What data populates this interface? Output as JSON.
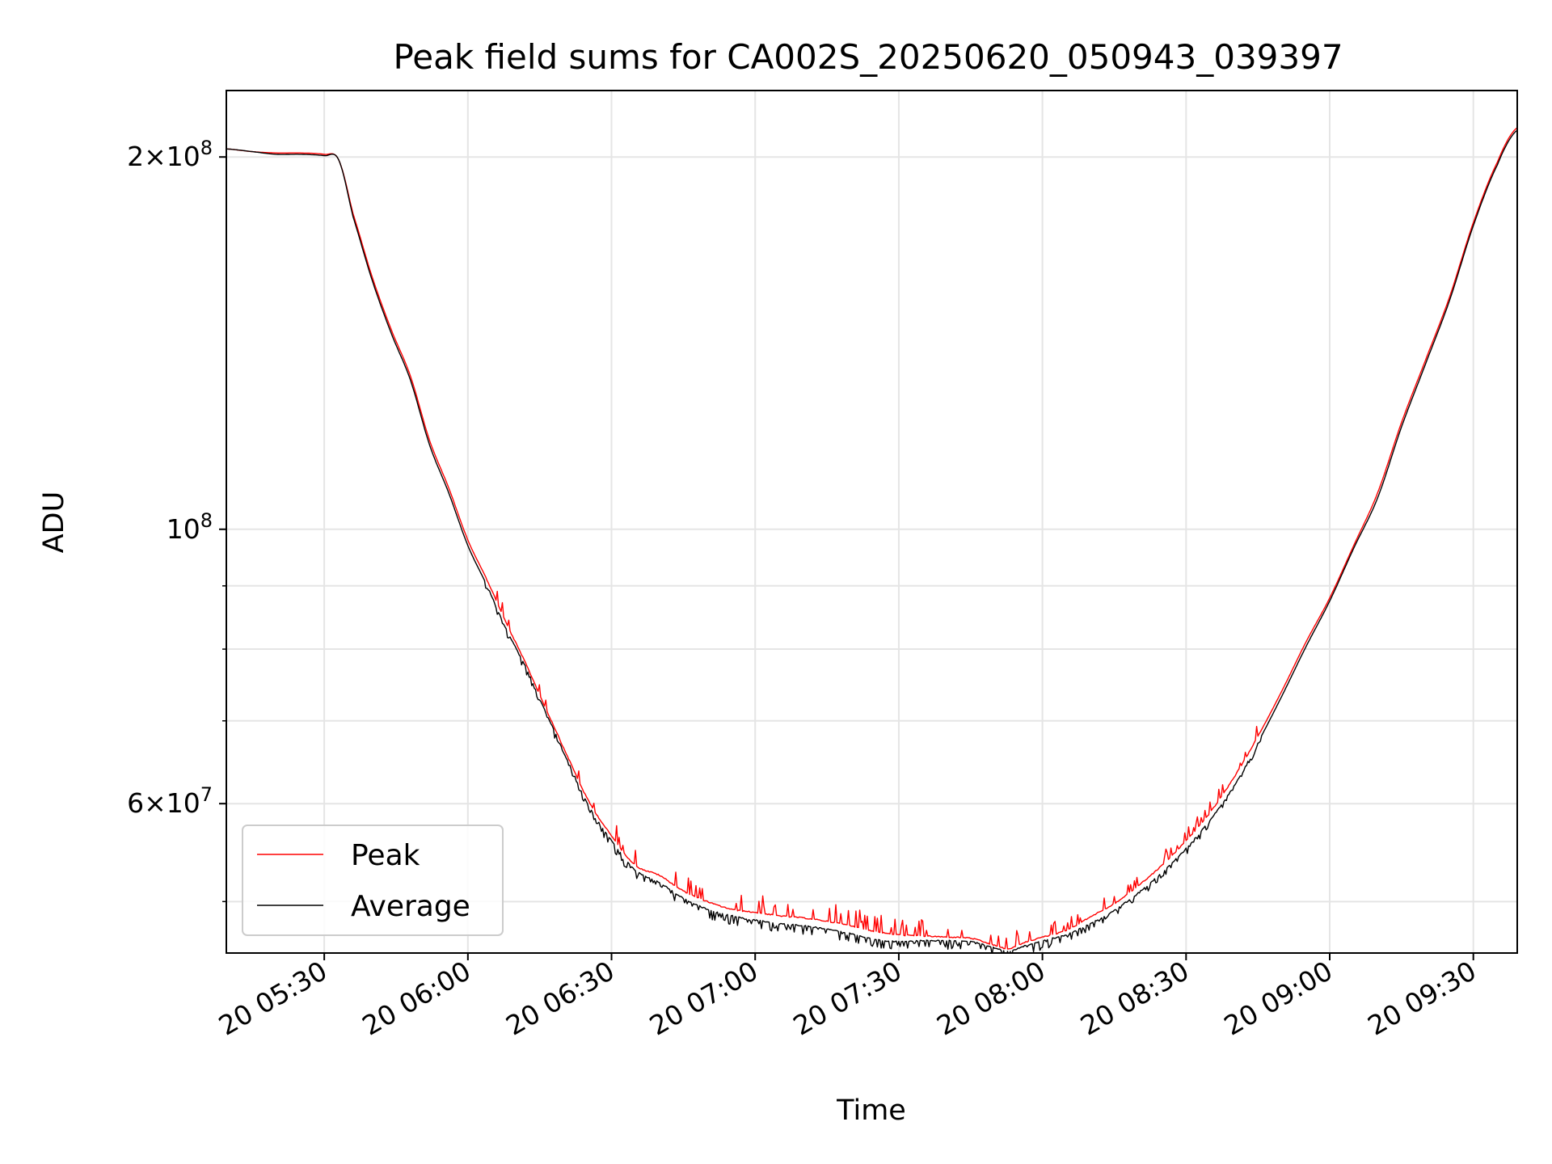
{
  "chart_data": {
    "type": "line",
    "title": "Peak field sums for CA002S_20250620_050943_039397",
    "xlabel": "Time",
    "ylabel": "ADU",
    "x_axis_kind": "datetime",
    "xlim": [
      "2025-06-20T05:09:43",
      "2025-06-20T09:39:00"
    ],
    "yscale": "log",
    "ylim": [
      45500000,
      226000000
    ],
    "grid": true,
    "legend_position": "lower-left",
    "x_tick_labels": [
      {
        "at": "2025-06-20T05:30:00",
        "label": "20 05:30"
      },
      {
        "at": "2025-06-20T06:00:00",
        "label": "20 06:00"
      },
      {
        "at": "2025-06-20T06:30:00",
        "label": "20 06:30"
      },
      {
        "at": "2025-06-20T07:00:00",
        "label": "20 07:00"
      },
      {
        "at": "2025-06-20T07:30:00",
        "label": "20 07:30"
      },
      {
        "at": "2025-06-20T08:00:00",
        "label": "20 08:00"
      },
      {
        "at": "2025-06-20T08:30:00",
        "label": "20 08:30"
      },
      {
        "at": "2025-06-20T09:00:00",
        "label": "20 09:00"
      },
      {
        "at": "2025-06-20T09:30:00",
        "label": "20 09:30"
      }
    ],
    "y_major_ticks": [
      {
        "value": 200000000,
        "mantissa": "2",
        "base": "10",
        "exp": "8"
      },
      {
        "value": 100000000,
        "mantissa": "",
        "base": "10",
        "exp": "8"
      },
      {
        "value": 60000000,
        "mantissa": "6",
        "base": "10",
        "exp": "7"
      }
    ],
    "y_minor_ticks": [
      50000000,
      70000000,
      80000000,
      90000000
    ],
    "series": [
      {
        "name": "Peak",
        "color": "#ff0000",
        "noise": "up",
        "x": [
          "2025-06-20T05:09:43",
          "2025-06-20T05:15:00",
          "2025-06-20T05:20:00",
          "2025-06-20T05:25:00",
          "2025-06-20T05:30:00",
          "2025-06-20T05:33:00",
          "2025-06-20T05:36:00",
          "2025-06-20T05:40:00",
          "2025-06-20T05:44:00",
          "2025-06-20T05:48:00",
          "2025-06-20T05:52:00",
          "2025-06-20T05:56:00",
          "2025-06-20T06:00:00",
          "2025-06-20T06:04:00",
          "2025-06-20T06:08:00",
          "2025-06-20T06:12:00",
          "2025-06-20T06:16:00",
          "2025-06-20T06:20:00",
          "2025-06-20T06:25:00",
          "2025-06-20T06:30:00",
          "2025-06-20T06:35:00",
          "2025-06-20T06:40:00",
          "2025-06-20T06:45:00",
          "2025-06-20T06:50:00",
          "2025-06-20T06:55:00",
          "2025-06-20T07:00:00",
          "2025-06-20T07:05:00",
          "2025-06-20T07:10:00",
          "2025-06-20T07:15:00",
          "2025-06-20T07:20:00",
          "2025-06-20T07:25:00",
          "2025-06-20T07:30:00",
          "2025-06-20T07:35:00",
          "2025-06-20T07:40:00",
          "2025-06-20T07:45:00",
          "2025-06-20T07:50:00",
          "2025-06-20T07:53:00",
          "2025-06-20T07:56:00",
          "2025-06-20T08:00:00",
          "2025-06-20T08:05:00",
          "2025-06-20T08:10:00",
          "2025-06-20T08:15:00",
          "2025-06-20T08:20:00",
          "2025-06-20T08:25:00",
          "2025-06-20T08:30:00",
          "2025-06-20T08:35:00",
          "2025-06-20T08:40:00",
          "2025-06-20T08:45:00",
          "2025-06-20T08:50:00",
          "2025-06-20T08:55:00",
          "2025-06-20T09:00:00",
          "2025-06-20T09:05:00",
          "2025-06-20T09:10:00",
          "2025-06-20T09:15:00",
          "2025-06-20T09:20:00",
          "2025-06-20T09:25:00",
          "2025-06-20T09:30:00",
          "2025-06-20T09:35:00",
          "2025-06-20T09:39:00"
        ],
        "values": [
          203000000,
          202000000,
          201500000,
          201500000,
          201000000,
          199000000,
          180000000,
          160000000,
          145000000,
          133000000,
          118000000,
          108000000,
          98000000,
          91000000,
          84000000,
          78000000,
          72000000,
          66500000,
          60500000,
          56500000,
          53500000,
          52500000,
          51000000,
          50000000,
          49300000,
          49000000,
          48700000,
          48500000,
          48200000,
          47800000,
          47300000,
          47000000,
          46900000,
          46800000,
          46700000,
          46100000,
          45800000,
          46300000,
          46800000,
          47400000,
          48600000,
          49800000,
          51500000,
          53500000,
          56000000,
          59000000,
          63000000,
          68000000,
          74000000,
          81000000,
          88000000,
          97000000,
          107000000,
          122000000,
          137000000,
          154000000,
          177000000,
          198000000,
          211000000
        ]
      },
      {
        "name": "Average",
        "color": "#000000",
        "noise": "down",
        "x": [
          "2025-06-20T05:09:43",
          "2025-06-20T05:15:00",
          "2025-06-20T05:20:00",
          "2025-06-20T05:25:00",
          "2025-06-20T05:30:00",
          "2025-06-20T05:33:00",
          "2025-06-20T05:36:00",
          "2025-06-20T05:40:00",
          "2025-06-20T05:44:00",
          "2025-06-20T05:48:00",
          "2025-06-20T05:52:00",
          "2025-06-20T05:56:00",
          "2025-06-20T06:00:00",
          "2025-06-20T06:04:00",
          "2025-06-20T06:08:00",
          "2025-06-20T06:12:00",
          "2025-06-20T06:16:00",
          "2025-06-20T06:20:00",
          "2025-06-20T06:25:00",
          "2025-06-20T06:30:00",
          "2025-06-20T06:35:00",
          "2025-06-20T06:40:00",
          "2025-06-20T06:45:00",
          "2025-06-20T06:50:00",
          "2025-06-20T06:55:00",
          "2025-06-20T07:00:00",
          "2025-06-20T07:05:00",
          "2025-06-20T07:10:00",
          "2025-06-20T07:15:00",
          "2025-06-20T07:20:00",
          "2025-06-20T07:25:00",
          "2025-06-20T07:30:00",
          "2025-06-20T07:35:00",
          "2025-06-20T07:40:00",
          "2025-06-20T07:45:00",
          "2025-06-20T07:50:00",
          "2025-06-20T07:53:00",
          "2025-06-20T07:56:00",
          "2025-06-20T08:00:00",
          "2025-06-20T08:05:00",
          "2025-06-20T08:10:00",
          "2025-06-20T08:15:00",
          "2025-06-20T08:20:00",
          "2025-06-20T08:25:00",
          "2025-06-20T08:30:00",
          "2025-06-20T08:35:00",
          "2025-06-20T08:40:00",
          "2025-06-20T08:45:00",
          "2025-06-20T08:50:00",
          "2025-06-20T08:55:00",
          "2025-06-20T09:00:00",
          "2025-06-20T09:05:00",
          "2025-06-20T09:10:00",
          "2025-06-20T09:15:00",
          "2025-06-20T09:20:00",
          "2025-06-20T09:25:00",
          "2025-06-20T09:30:00",
          "2025-06-20T09:35:00",
          "2025-06-20T09:39:00"
        ],
        "values": [
          203000000,
          202000000,
          201000000,
          201000000,
          200500000,
          199000000,
          179000000,
          159000000,
          144000000,
          132000000,
          117000000,
          107000000,
          97000000,
          90000000,
          83000000,
          77500000,
          71500000,
          66000000,
          60000000,
          56000000,
          53000000,
          51800000,
          50300000,
          49300000,
          48700000,
          48300000,
          48000000,
          47800000,
          47500000,
          47100000,
          46600000,
          46400000,
          46500000,
          46500000,
          46400000,
          45900000,
          45600000,
          46000000,
          46500000,
          47000000,
          48000000,
          49200000,
          50800000,
          52800000,
          55200000,
          58200000,
          62000000,
          67200000,
          73300000,
          80300000,
          87500000,
          96500000,
          106000000,
          121000000,
          136000000,
          153000000,
          176000000,
          197000000,
          210000000
        ]
      }
    ]
  }
}
